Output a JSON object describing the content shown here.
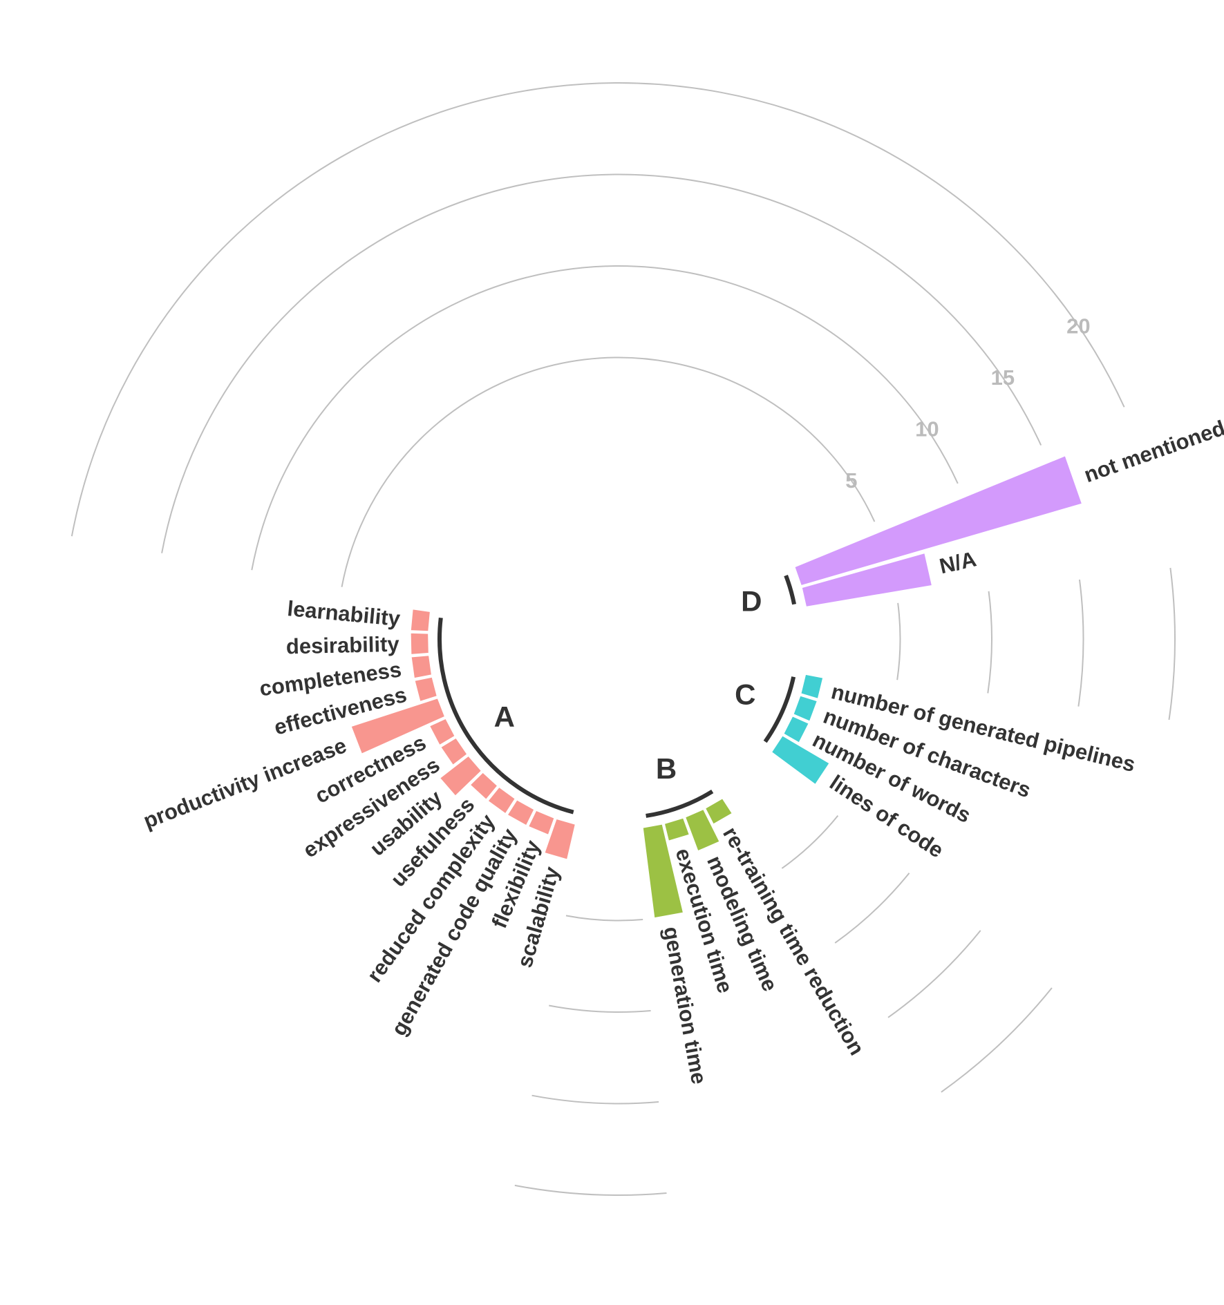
{
  "chart_data": {
    "type": "bar",
    "subtype": "circular",
    "title": "",
    "radial_ticks": [
      "5",
      "10",
      "15",
      "20"
    ],
    "radial_tick_values": [
      5,
      10,
      15,
      20
    ],
    "rlim": [
      0,
      20
    ],
    "grid": true,
    "groups": [
      {
        "name": "A",
        "color": "#F8968F",
        "categories": [
          "learnability",
          "desirability",
          "completeness",
          "effectiveness",
          "productivity increase",
          "correctness",
          "expressiveness",
          "usability",
          "usefulness",
          "reduced complexity",
          "generated code quality",
          "flexibility",
          "scalability"
        ],
        "values": [
          1,
          1,
          1,
          1,
          5,
          1,
          1,
          2,
          1,
          1,
          1,
          1,
          2
        ]
      },
      {
        "name": "B",
        "color": "#9CC144",
        "categories": [
          "generation time",
          "execution time",
          "modeling time",
          "re-training time reduction"
        ],
        "values": [
          5,
          1,
          2,
          1
        ]
      },
      {
        "name": "C",
        "color": "#41CFD2",
        "categories": [
          "lines of code",
          "number of words",
          "number of characters",
          "number of generated pipelines"
        ],
        "values": [
          3,
          1,
          1,
          1
        ]
      },
      {
        "name": "D",
        "color": "#D39AFC",
        "categories": [
          "N/A",
          "not mentioned"
        ],
        "values": [
          7,
          16
        ]
      }
    ]
  }
}
